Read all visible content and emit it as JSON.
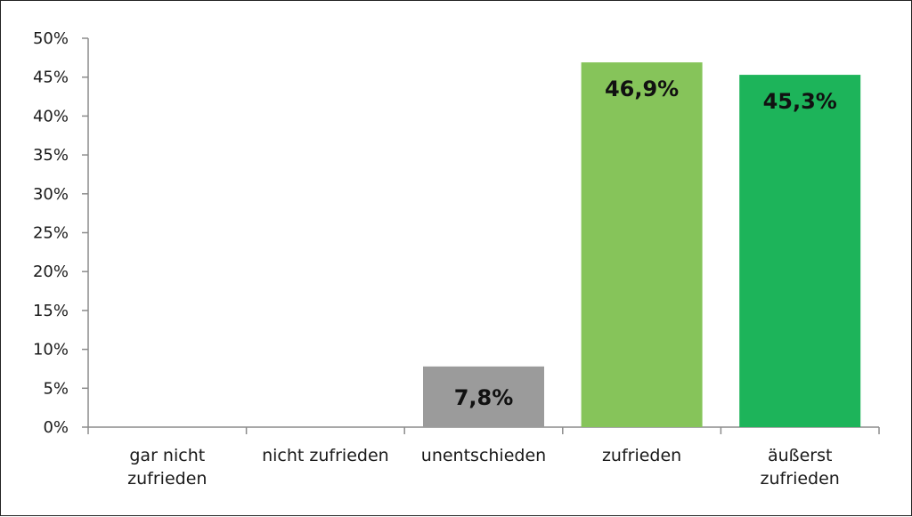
{
  "chart_data": {
    "type": "bar",
    "categories": [
      [
        "gar nicht",
        "zufrieden"
      ],
      [
        "nicht zufrieden"
      ],
      [
        "unentschieden"
      ],
      [
        "zufrieden"
      ],
      [
        "äußerst",
        "zufrieden"
      ]
    ],
    "values": [
      0,
      0,
      7.8,
      46.9,
      45.3
    ],
    "data_labels": [
      "",
      "",
      "7,8%",
      "46,9%",
      "45,3%"
    ],
    "colors": [
      "#9b9b9b",
      "#9b9b9b",
      "#9b9b9b",
      "#86c45a",
      "#1db45a"
    ],
    "ylim": [
      0,
      50
    ],
    "yticks": [
      0,
      5,
      10,
      15,
      20,
      25,
      30,
      35,
      40,
      45,
      50
    ],
    "ytick_labels": [
      "0%",
      "5%",
      "10%",
      "15%",
      "20%",
      "25%",
      "30%",
      "35%",
      "40%",
      "45%",
      "50%"
    ],
    "grid": false,
    "legend": "none",
    "title": "",
    "xlabel": "",
    "ylabel": ""
  }
}
